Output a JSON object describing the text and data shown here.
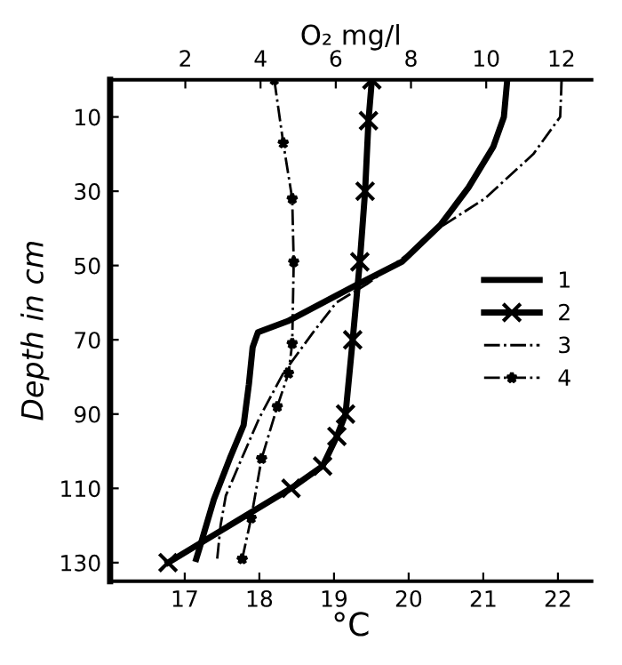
{
  "chart_data": {
    "type": "line",
    "xlabel": "°C",
    "x2label": "O₂ mg/l",
    "ylabel": "Depth in cm",
    "xlim": [
      16,
      22.45
    ],
    "xticks": [
      17,
      18,
      19,
      20,
      21,
      22
    ],
    "x2lim": [
      0,
      12.8
    ],
    "x2ticks": [
      2,
      4,
      6,
      8,
      10,
      12
    ],
    "ylim": [
      135,
      0
    ],
    "yticks": [
      10,
      30,
      50,
      70,
      90,
      110,
      130
    ],
    "grid": false,
    "legend": "center right",
    "series": [
      {
        "name": "1",
        "color": "#000000",
        "axis": "x2",
        "line_style": "solid",
        "marker": "none",
        "x": [
          10.56,
          10.47,
          10.19,
          9.53,
          8.79,
          7.76,
          6.59,
          4.72,
          3.93,
          3.79,
          3.69,
          3.55,
          3.18,
          2.76,
          2.38,
          2.29
        ],
        "values": [
          0,
          10,
          18,
          29,
          39,
          49,
          55,
          65,
          68,
          72,
          82,
          93,
          102,
          113,
          126,
          129
        ]
      },
      {
        "name": "2",
        "color": "#000000",
        "axis": "x2",
        "line_style": "solid",
        "marker": "cross",
        "x": [
          6.96,
          6.87,
          6.78,
          6.64,
          6.45,
          6.26,
          6.03,
          5.65,
          4.81,
          1.54
        ],
        "values": [
          0,
          11,
          30,
          49,
          70,
          90,
          96,
          104,
          110,
          130
        ]
      },
      {
        "name": "3",
        "color": "#000000",
        "line_style": "dashdot",
        "marker": "none",
        "x": [
          22.05,
          22.03,
          21.67,
          21.02,
          20.4,
          19.99,
          19.44,
          19.03,
          18.72,
          18.32,
          18.0,
          17.72,
          17.55,
          17.48,
          17.43
        ],
        "values": [
          0,
          10,
          20,
          32,
          40,
          47,
          55,
          60,
          68,
          79,
          91,
          104,
          112,
          120,
          130
        ]
      },
      {
        "name": "4",
        "color": "#000000",
        "line_style": "dashdot",
        "marker": "star",
        "x": [
          18.2,
          18.32,
          18.44,
          18.46,
          18.44,
          18.39,
          18.24,
          18.03,
          17.89,
          17.77
        ],
        "values": [
          0,
          17,
          32,
          49,
          71,
          79,
          88,
          102,
          118,
          129
        ]
      }
    ]
  }
}
